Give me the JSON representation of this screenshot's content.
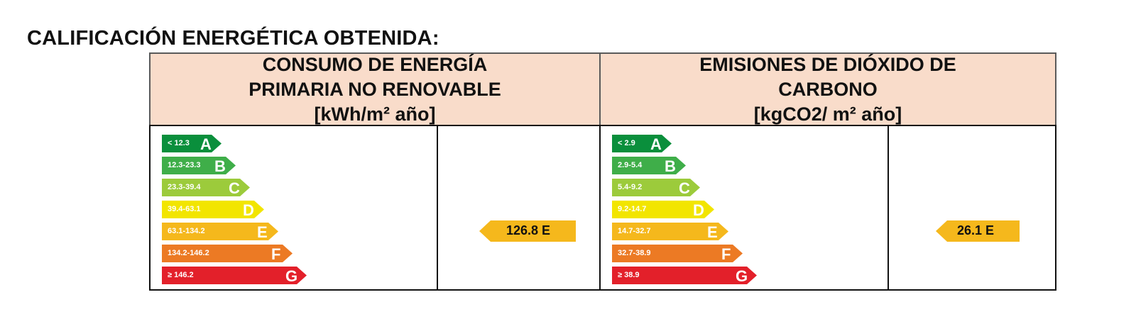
{
  "page_title": "CALIFICACIÓN ENERGÉTICA OBTENIDA:",
  "energy": {
    "header_line1": "CONSUMO DE ENERGÍA",
    "header_line2": "PRIMARIA NO RENOVABLE",
    "header_unit": "[kWh/m² año]",
    "scale": [
      {
        "range": "< 12.3",
        "letter": "A",
        "color": "#0a8f3c"
      },
      {
        "range": "12.3-23.3",
        "letter": "B",
        "color": "#3fae49"
      },
      {
        "range": "23.3-39.4",
        "letter": "C",
        "color": "#9ccb3b"
      },
      {
        "range": "39.4-63.1",
        "letter": "D",
        "color": "#f2e500"
      },
      {
        "range": "63.1-134.2",
        "letter": "E",
        "color": "#f5b81c"
      },
      {
        "range": "134.2-146.2",
        "letter": "F",
        "color": "#ec7a24"
      },
      {
        "range": "≥ 146.2",
        "letter": "G",
        "color": "#e3202a"
      }
    ],
    "result_text": "126.8 E",
    "result_letter": "E",
    "result_value": 126.8,
    "result_color": "#f5b81c"
  },
  "emissions": {
    "header_line1": "EMISIONES DE DIÓXIDO DE",
    "header_line2": "CARBONO",
    "header_unit": "[kgCO2/ m² año]",
    "scale": [
      {
        "range": "< 2.9",
        "letter": "A",
        "color": "#0a8f3c"
      },
      {
        "range": "2.9-5.4",
        "letter": "B",
        "color": "#3fae49"
      },
      {
        "range": "5.4-9.2",
        "letter": "C",
        "color": "#9ccb3b"
      },
      {
        "range": "9.2-14.7",
        "letter": "D",
        "color": "#f2e500"
      },
      {
        "range": "14.7-32.7",
        "letter": "E",
        "color": "#f5b81c"
      },
      {
        "range": "32.7-38.9",
        "letter": "F",
        "color": "#ec7a24"
      },
      {
        "range": "≥ 38.9",
        "letter": "G",
        "color": "#e3202a"
      }
    ],
    "result_text": "26.1 E",
    "result_letter": "E",
    "result_value": 26.1,
    "result_color": "#f5b81c"
  }
}
